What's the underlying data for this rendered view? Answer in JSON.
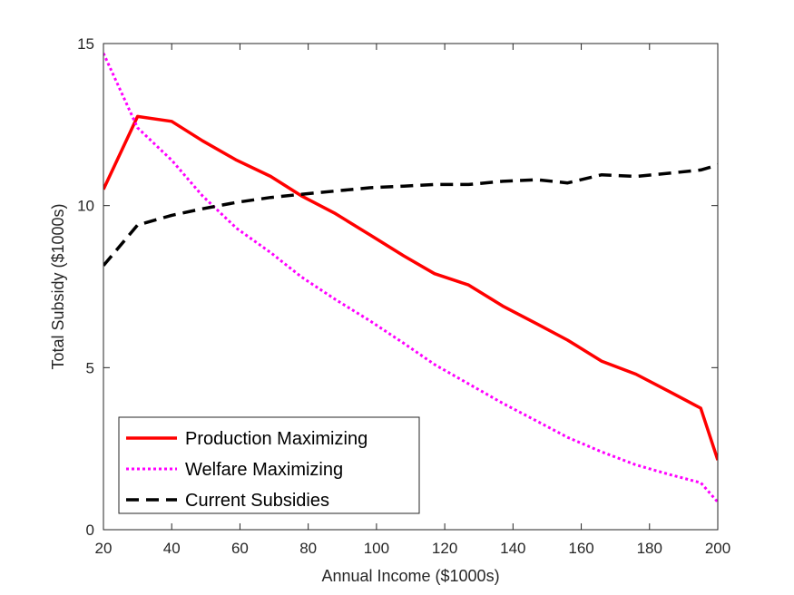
{
  "chart_data": {
    "type": "line",
    "xlabel": "Annual Income ($1000s)",
    "ylabel": "Total Subsidy ($1000s)",
    "xlim": [
      20,
      200
    ],
    "ylim": [
      0,
      15
    ],
    "xticks": [
      20,
      40,
      60,
      80,
      100,
      120,
      140,
      160,
      180,
      200
    ],
    "yticks": [
      0,
      5,
      10,
      15
    ],
    "grid": false,
    "legend_position": "bottom-left",
    "series": [
      {
        "name": "Production Maximizing",
        "color": "#ff0000",
        "style": "solid",
        "x": [
          20,
          30,
          40,
          49,
          59,
          69,
          78,
          88,
          98,
          108,
          117,
          127,
          137,
          147,
          156,
          166,
          176,
          186,
          195,
          200
        ],
        "y": [
          10.5,
          12.75,
          12.6,
          12.0,
          11.4,
          10.9,
          10.3,
          9.75,
          9.1,
          8.45,
          7.9,
          7.55,
          6.9,
          6.35,
          5.85,
          5.2,
          4.8,
          4.25,
          3.75,
          2.15
        ]
      },
      {
        "name": "Welfare Maximizing",
        "color": "#ff00ff",
        "style": "dotted",
        "x": [
          20,
          30,
          40,
          49,
          59,
          69,
          78,
          88,
          98,
          108,
          117,
          127,
          137,
          147,
          156,
          166,
          176,
          186,
          195,
          200
        ],
        "y": [
          14.7,
          12.4,
          11.4,
          10.3,
          9.3,
          8.55,
          7.8,
          7.1,
          6.45,
          5.75,
          5.1,
          4.5,
          3.9,
          3.35,
          2.85,
          2.4,
          2.0,
          1.7,
          1.45,
          0.85
        ]
      },
      {
        "name": "Current Subsidies",
        "color": "#000000",
        "style": "dashed",
        "x": [
          20,
          30,
          40,
          49,
          59,
          69,
          78,
          88,
          98,
          108,
          117,
          127,
          137,
          147,
          156,
          166,
          176,
          186,
          195,
          200
        ],
        "y": [
          8.15,
          9.4,
          9.7,
          9.9,
          10.1,
          10.25,
          10.35,
          10.45,
          10.55,
          10.6,
          10.65,
          10.65,
          10.75,
          10.8,
          10.7,
          10.95,
          10.9,
          11.0,
          11.1,
          11.25
        ]
      }
    ]
  }
}
